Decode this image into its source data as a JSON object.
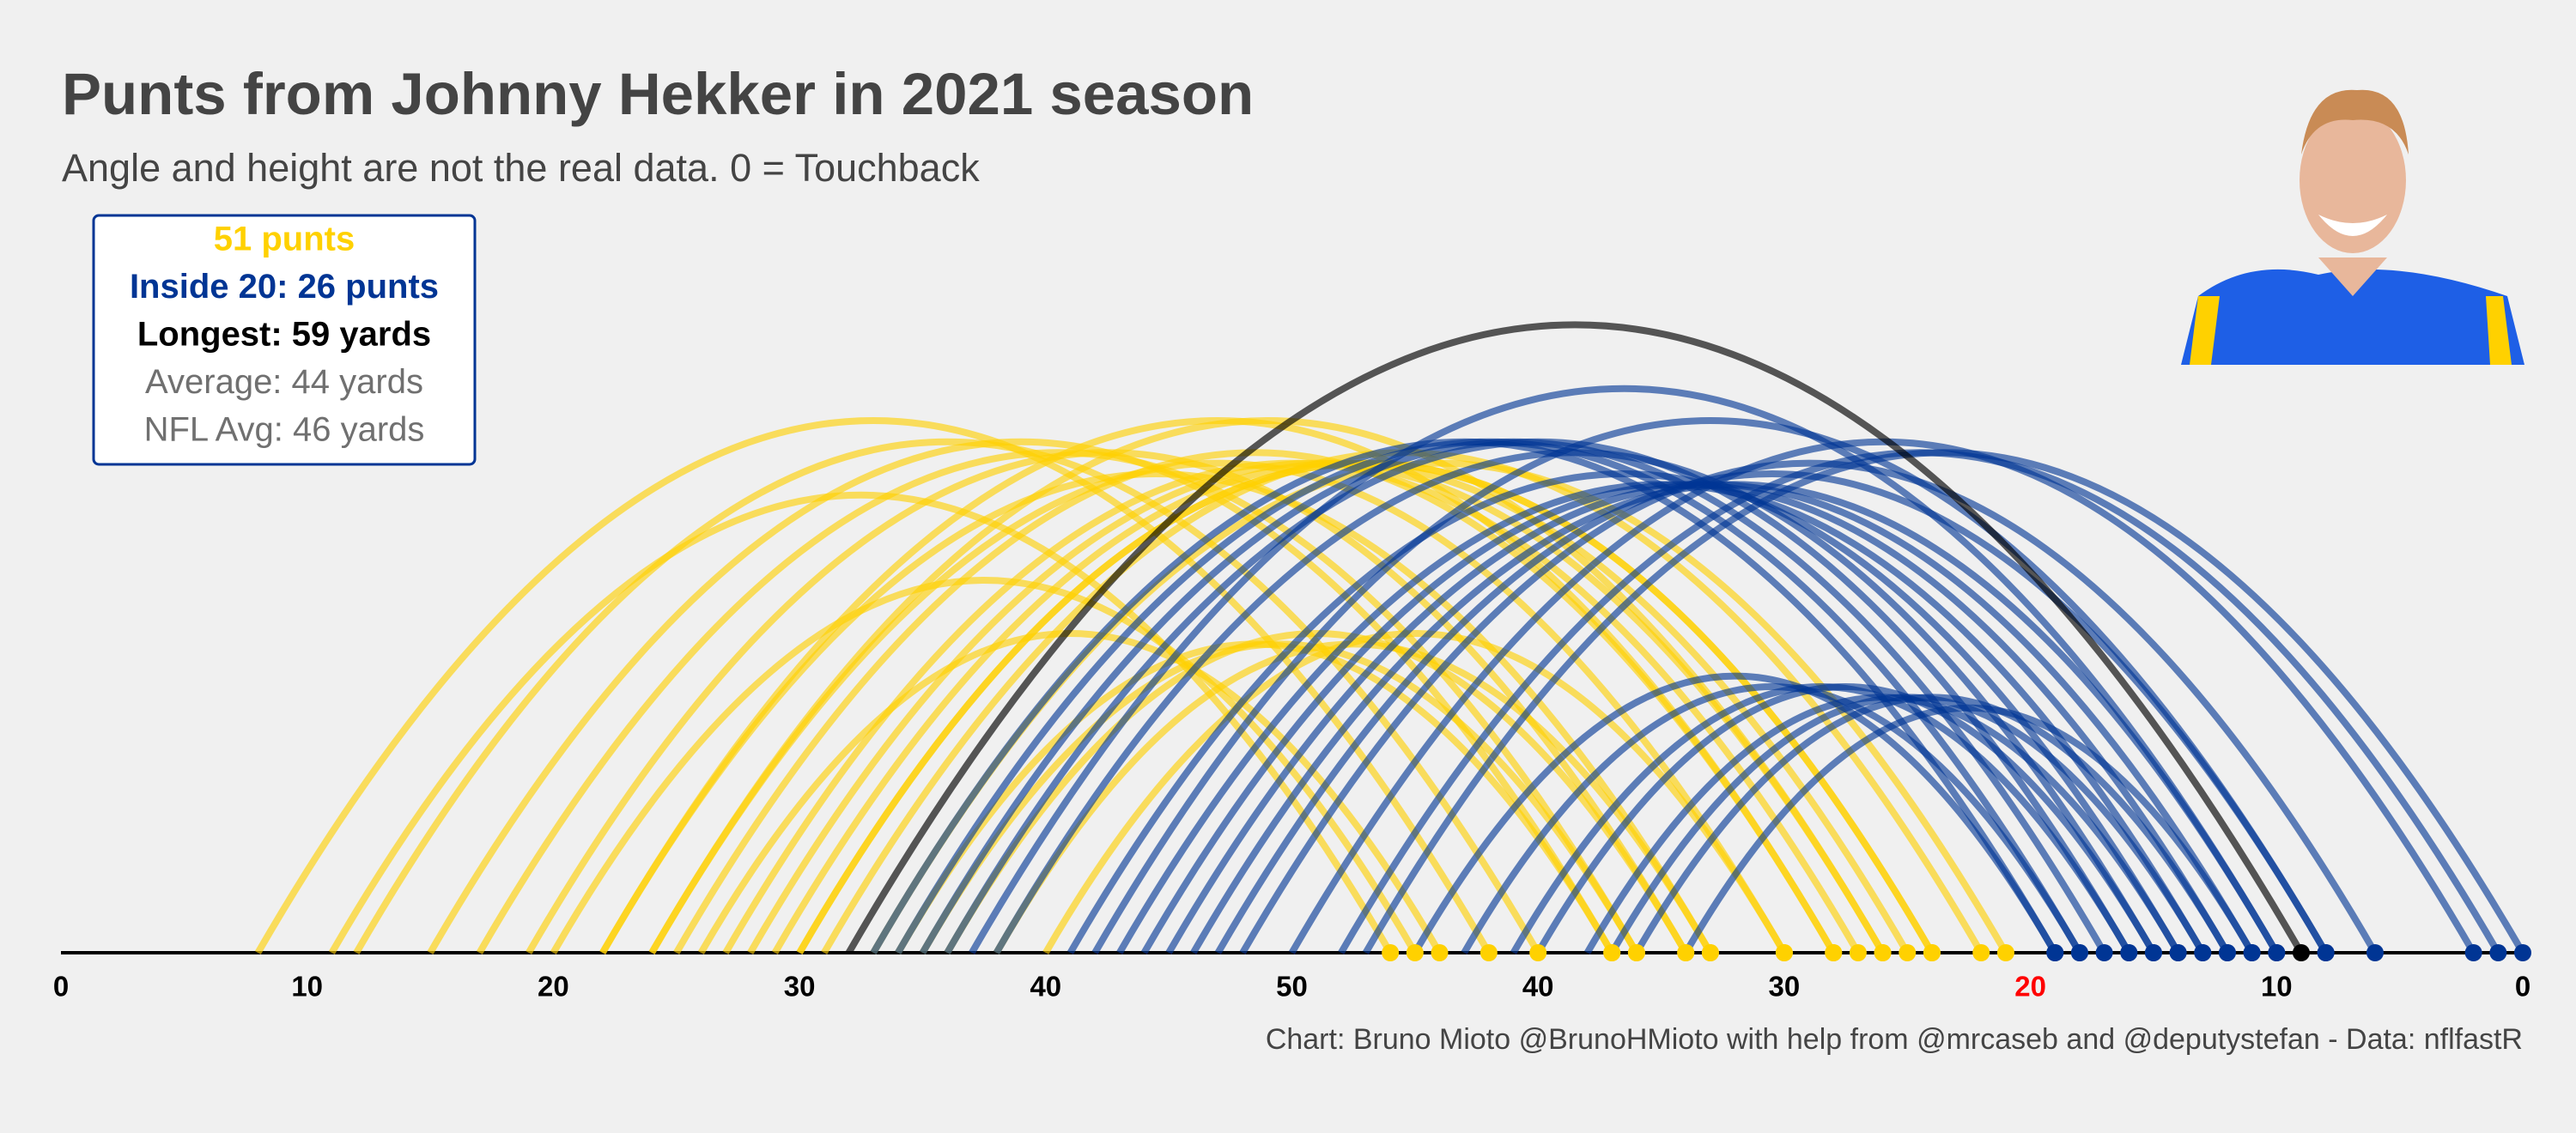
{
  "chart_data": {
    "type": "arc",
    "title": "Punts from Johnny Hekker in 2021 season",
    "subtitle": "Angle and height are not the real data. 0 = Touchback",
    "caption": "Chart: Bruno Mioto @BrunoHMioto with help from @mrcaseb and @deputystefan - Data: nflfastR",
    "stats": [
      {
        "text": "51 punts",
        "color": "#FFD100",
        "bold": true
      },
      {
        "text": "Inside 20: 26 punts",
        "color": "#003594",
        "bold": true
      },
      {
        "text": "Longest: 59 yards",
        "color": "#000000",
        "bold": true
      },
      {
        "text": "Average: 44 yards",
        "color": "#707070",
        "bold": false
      },
      {
        "text": "NFL Avg: 46 yards",
        "color": "#707070",
        "bold": false
      }
    ],
    "xlim": [
      0,
      100
    ],
    "xticks": [
      0,
      10,
      20,
      30,
      40,
      50,
      {
        "value": 60,
        "label": "40"
      },
      {
        "value": 70,
        "label": "30"
      },
      {
        "value": 80,
        "label": "20",
        "color": "#ff0000"
      },
      {
        "value": 90,
        "label": "10"
      },
      {
        "value": 100,
        "label": "0"
      }
    ],
    "series": [
      {
        "color": "#FFD100",
        "from": [
          8,
          11,
          12,
          15,
          17,
          19,
          20,
          22,
          24,
          25,
          26,
          27,
          28,
          29,
          30,
          31,
          33,
          34,
          35,
          36,
          38,
          40,
          22,
          24,
          30
        ],
        "to": [
          58,
          54,
          60,
          63,
          64,
          66,
          55,
          67,
          70,
          72,
          56,
          73,
          74,
          75,
          76,
          78,
          79,
          63,
          64,
          66,
          67,
          70,
          72,
          74,
          76
        ]
      },
      {
        "color": "#003594",
        "from": [
          33,
          34,
          35,
          36,
          38,
          41,
          43,
          44,
          45,
          46,
          47,
          48,
          50,
          52,
          53,
          55,
          57,
          59,
          60,
          62,
          63,
          64,
          66,
          37,
          42
        ],
        "to": [
          81,
          82,
          83,
          84,
          85,
          86,
          87,
          88,
          89,
          90,
          92,
          94,
          98,
          99,
          100,
          81,
          82,
          84,
          85,
          86,
          87,
          88,
          89,
          90,
          92
        ]
      },
      {
        "color": "#000000",
        "from": [
          32
        ],
        "to": [
          91
        ]
      }
    ]
  }
}
